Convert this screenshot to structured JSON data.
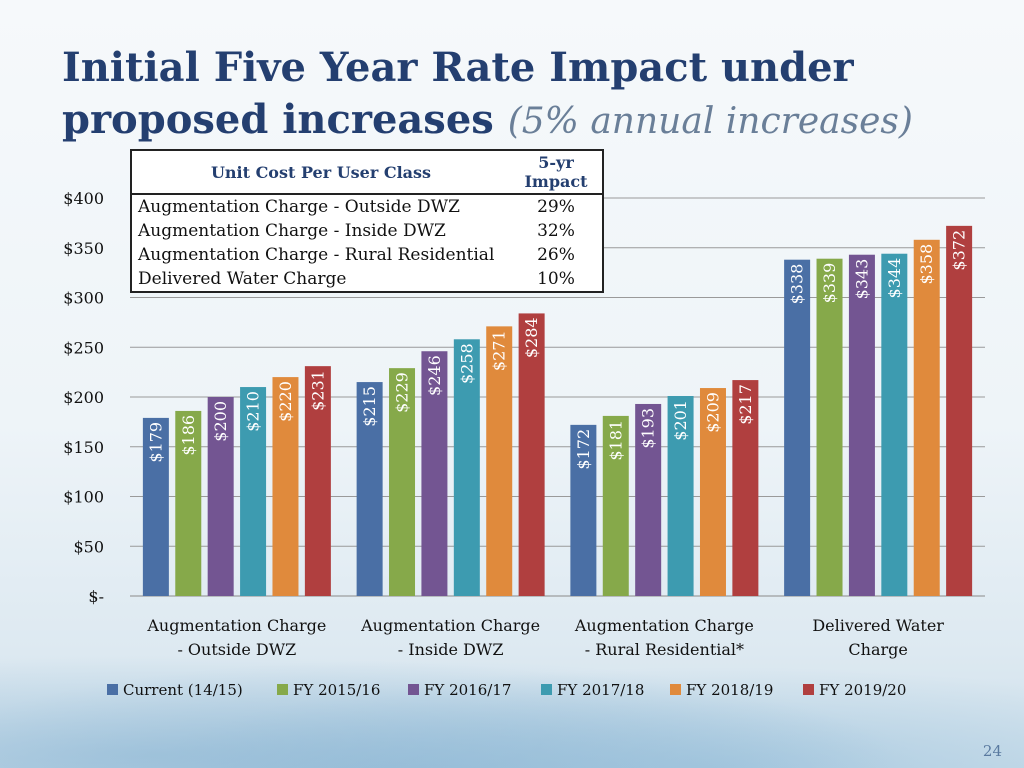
{
  "slide": {
    "title_main": "Initial Five Year Rate Impact under proposed increases",
    "title_sub": "(5% annual increases)",
    "page_number": "24"
  },
  "table": {
    "headers": [
      "Unit Cost Per User Class",
      "5-yr Impact"
    ],
    "rows": [
      {
        "label": "Augmentation Charge - Outside DWZ",
        "value": "29%"
      },
      {
        "label": "Augmentation Charge - Inside DWZ",
        "value": "32%"
      },
      {
        "label": "Augmentation Charge - Rural Residential",
        "value": "26%"
      },
      {
        "label": "Delivered Water Charge",
        "value": "10%"
      }
    ]
  },
  "chart_data": {
    "type": "bar",
    "categories": [
      [
        "Augmentation Charge",
        "- Outside DWZ"
      ],
      [
        "Augmentation Charge",
        "- Inside DWZ"
      ],
      [
        "Augmentation Charge",
        "- Rural Residential*"
      ],
      [
        "Delivered Water",
        "Charge"
      ]
    ],
    "series": [
      {
        "name": "Current (14/15)",
        "color": "#4a6fa5",
        "values": [
          179,
          215,
          172,
          338
        ]
      },
      {
        "name": "FY 2015/16",
        "color": "#86a94a",
        "values": [
          186,
          229,
          181,
          339
        ]
      },
      {
        "name": "FY 2016/17",
        "color": "#735592",
        "values": [
          200,
          246,
          193,
          343
        ]
      },
      {
        "name": "FY 2017/18",
        "color": "#3d9bb0",
        "values": [
          210,
          258,
          201,
          344
        ]
      },
      {
        "name": "FY 2018/19",
        "color": "#e08a3c",
        "values": [
          220,
          271,
          209,
          358
        ]
      },
      {
        "name": "FY 2019/20",
        "color": "#b03f3f",
        "values": [
          231,
          284,
          217,
          372
        ]
      }
    ],
    "y_ticks": [
      "$-",
      "$50",
      "$100",
      "$150",
      "$200",
      "$250",
      "$300",
      "$350",
      "$400"
    ],
    "ylim": [
      0,
      400
    ],
    "data_label_prefix": "$",
    "grid": true,
    "legend_position": "bottom"
  }
}
